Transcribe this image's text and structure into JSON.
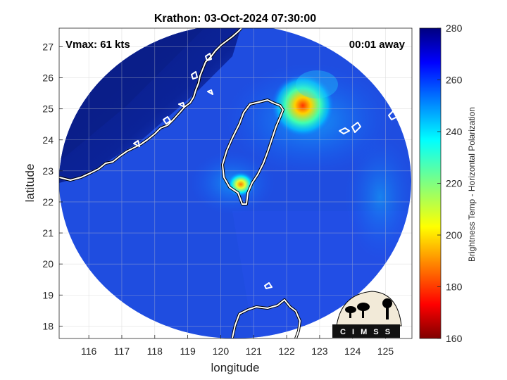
{
  "title": "Krathon: 03-Oct-2024 07:30:00",
  "vmax_text": "Vmax: 61 kts",
  "away_text": "00:01 away",
  "map": {
    "xlabel": "longitude",
    "ylabel": "latitude",
    "lon_range": [
      115.1,
      125.8
    ],
    "lat_range": [
      17.6,
      27.6
    ],
    "lon_ticks": [
      116,
      117,
      118,
      119,
      120,
      121,
      122,
      123,
      124,
      125
    ],
    "lat_ticks": [
      18,
      19,
      20,
      21,
      22,
      23,
      24,
      25,
      26,
      27
    ],
    "grid": true
  },
  "colorbar": {
    "label": "Brightness Temp - Horizontal Polarization",
    "range": [
      160,
      280
    ],
    "ticks": [
      160,
      180,
      200,
      220,
      240,
      260,
      280
    ],
    "colormap": "jet"
  },
  "logo": {
    "text": "CIMSS"
  },
  "colors": {
    "background_dark_blue": "#0a1f8a",
    "field_blue": "#1f4fe0",
    "coast": "#ffffff",
    "outside_swath": "#ffffff"
  }
}
